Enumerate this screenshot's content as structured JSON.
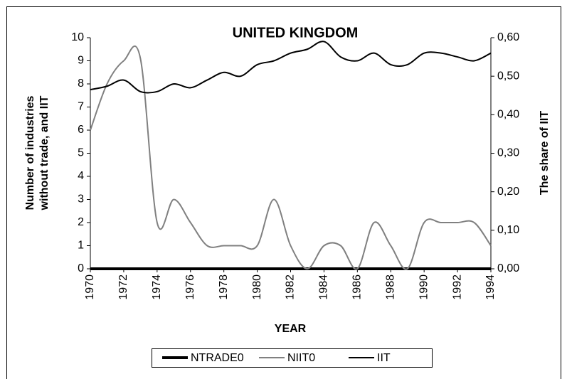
{
  "chart_data": {
    "type": "line",
    "title": "UNITED KINGDOM",
    "xlabel": "YEAR",
    "ylabel": [
      "Number of industries",
      "without trade, and IIT"
    ],
    "y2label": "The share of IIT",
    "x": [
      1970,
      1971,
      1972,
      1973,
      1974,
      1975,
      1976,
      1977,
      1978,
      1979,
      1980,
      1981,
      1982,
      1983,
      1984,
      1985,
      1986,
      1987,
      1988,
      1989,
      1990,
      1991,
      1992,
      1993,
      1994
    ],
    "xlim": [
      1970,
      1994
    ],
    "xticks": [
      1970,
      1972,
      1974,
      1976,
      1978,
      1980,
      1982,
      1984,
      1986,
      1988,
      1990,
      1992,
      1994
    ],
    "ylim": [
      0,
      10
    ],
    "yticks": [
      0,
      1,
      2,
      3,
      4,
      5,
      6,
      7,
      8,
      9,
      10
    ],
    "y2lim": [
      0,
      0.6
    ],
    "y2ticks": [
      {
        "value": 0,
        "label": "0,00"
      },
      {
        "value": 0.1,
        "label": "0,10"
      },
      {
        "value": 0.2,
        "label": "0,20"
      },
      {
        "value": 0.3,
        "label": "0,30"
      },
      {
        "value": 0.4,
        "label": "0,40"
      },
      {
        "value": 0.5,
        "label": "0,50"
      },
      {
        "value": 0.6,
        "label": "0,60"
      }
    ],
    "legend": "bottom",
    "series": [
      {
        "name": "NTRADE0",
        "color": "#000000",
        "linewidth": 4,
        "values": [
          0,
          0,
          0,
          0,
          0,
          0,
          0,
          0,
          0,
          0,
          0,
          0,
          0,
          0,
          0,
          0,
          0,
          0,
          0,
          0,
          0,
          0,
          0,
          0,
          0
        ]
      },
      {
        "name": "NIIT0",
        "color": "#808080",
        "linewidth": 2,
        "values": [
          6,
          8,
          9,
          9.1,
          2,
          3,
          2,
          1,
          1,
          1,
          1,
          3,
          1,
          0,
          1,
          1,
          0,
          2,
          1,
          0,
          2,
          2,
          2,
          2,
          1
        ]
      },
      {
        "name": "IIT",
        "color": "#000000",
        "linewidth": 2,
        "axis": "y2",
        "values": [
          0.465,
          0.474,
          0.49,
          0.46,
          0.46,
          0.48,
          0.47,
          0.49,
          0.51,
          0.5,
          0.53,
          0.54,
          0.56,
          0.57,
          0.59,
          0.55,
          0.54,
          0.56,
          0.53,
          0.53,
          0.56,
          0.56,
          0.55,
          0.54,
          0.56
        ]
      }
    ]
  }
}
